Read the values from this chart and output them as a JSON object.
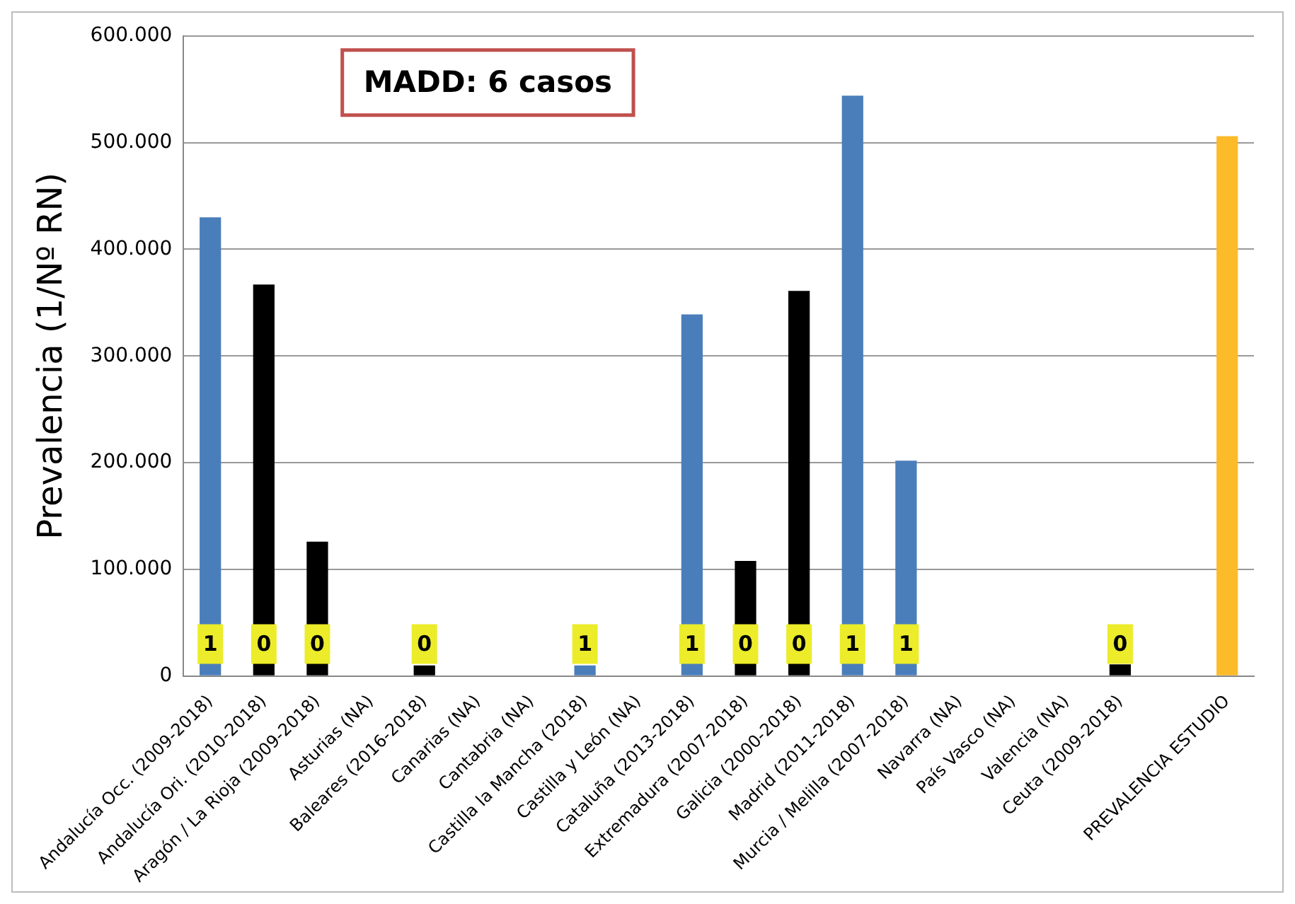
{
  "chart_data": {
    "type": "bar",
    "categories": [
      "Andalucía Occ. (2009-2018)",
      "Andalucía Ori. (2010-2018)",
      "Aragón / La Rioja (2009-2018)",
      "Asturias (NA)",
      "Baleares (2016-2018)",
      "Canarias (NA)",
      "Cantabria (NA)",
      "Castilla la Mancha (2018)",
      "Castilla y León (NA)",
      "Cataluña (2013-2018)",
      "Extremadura (2007-2018)",
      "Galicia (2000-2018)",
      "Madrid (2011-2018)",
      "Murcia / Melilla (2007-2018)",
      "Navarra (NA)",
      "País Vasco (NA)",
      "Valencia (NA)",
      "Ceuta (2009-2018)",
      null,
      "PREVALENCIA ESTUDIO"
    ],
    "series": [
      {
        "values": [
          430000,
          367000,
          126000,
          null,
          10000,
          null,
          null,
          10000,
          null,
          339000,
          108000,
          361000,
          544000,
          202000,
          null,
          null,
          null,
          11000,
          null,
          506000
        ],
        "colors": [
          "#4a7ebb",
          "#000000",
          "#000000",
          "#4a7ebb",
          "#000000",
          "#4a7ebb",
          "#4a7ebb",
          "#4a7ebb",
          "#4a7ebb",
          "#4a7ebb",
          "#000000",
          "#000000",
          "#4a7ebb",
          "#4a7ebb",
          "#4a7ebb",
          "#4a7ebb",
          "#4a7ebb",
          "#000000",
          "#4a7ebb",
          "#fdbb2a"
        ]
      }
    ],
    "ylabel": "Prevalencia (1/Nº RN)",
    "ylim": [
      0,
      600000
    ],
    "yticks": [
      {
        "value": 0,
        "label": "0"
      },
      {
        "value": 100000,
        "label": "100.000"
      },
      {
        "value": 200000,
        "label": "200.000"
      },
      {
        "value": 300000,
        "label": "300.000"
      },
      {
        "value": 400000,
        "label": "400.000"
      },
      {
        "value": 500000,
        "label": "500.000"
      },
      {
        "value": 600000,
        "label": "600.000"
      }
    ],
    "annotations": [
      "MADD: 6 casos",
      {
        "text": "1",
        "x": "Andalucía Occ. (2009-2018)",
        "y": 30000
      },
      {
        "text": "0",
        "x": "Andalucía Ori. (2010-2018)",
        "y": 30000
      },
      {
        "text": "0",
        "x": "Aragón / La Rioja (2009-2018)",
        "y": 30000
      },
      {
        "text": "0",
        "x": "Baleares (2016-2018)",
        "y": 30000
      },
      {
        "text": "1",
        "x": "Castilla la Mancha (2018)",
        "y": 30000
      },
      {
        "text": "1",
        "x": "Cataluña (2013-2018)",
        "y": 30000
      },
      {
        "text": "0",
        "x": "Extremadura (2007-2018)",
        "y": 30000
      },
      {
        "text": "0",
        "x": "Galicia (2000-2018)",
        "y": 30000
      },
      {
        "text": "1",
        "x": "Madrid (2011-2018)",
        "y": 30000
      },
      {
        "text": "1",
        "x": "Murcia / Melilla (2007-2018)",
        "y": 30000
      },
      {
        "text": "0",
        "x": "Ceuta (2009-2018)",
        "y": 30000
      }
    ],
    "grid": "y",
    "legend": false
  }
}
